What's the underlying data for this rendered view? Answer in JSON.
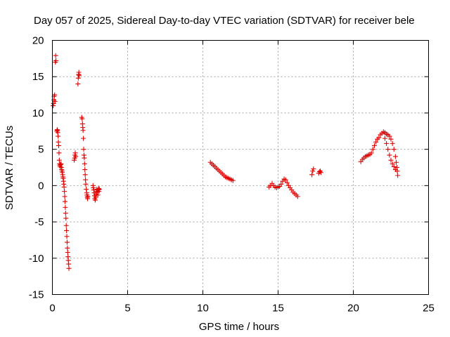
{
  "chart_data": {
    "type": "scatter",
    "title": "Day 057 of 2025, Sidereal Day-to-day VTEC variation (SDTVAR) for receiver bele",
    "xlabel": "GPS time / hours",
    "ylabel": "SDTVAR / TECUs",
    "xlim": [
      0,
      25
    ],
    "ylim": [
      -15,
      20
    ],
    "xticks": [
      0,
      5,
      10,
      15,
      20,
      25
    ],
    "yticks": [
      -15,
      -10,
      -5,
      0,
      5,
      10,
      15,
      20
    ],
    "xtick_labels": [
      "0",
      "5",
      "10",
      "15",
      "20",
      "25"
    ],
    "ytick_labels": [
      "-15",
      "-10",
      "-5",
      "0",
      "5",
      "10",
      "15",
      "20"
    ],
    "grid": true,
    "marker": "+",
    "color": "#e00000",
    "series": [
      {
        "name": "SDTVAR",
        "points": [
          [
            0.05,
            11.0
          ],
          [
            0.08,
            11.3
          ],
          [
            0.1,
            11.8
          ],
          [
            0.12,
            12.3
          ],
          [
            0.15,
            12.5
          ],
          [
            0.18,
            11.6
          ],
          [
            0.2,
            17.0
          ],
          [
            0.22,
            17.9
          ],
          [
            0.24,
            17.2
          ],
          [
            0.3,
            7.5
          ],
          [
            0.32,
            7.7
          ],
          [
            0.34,
            7.6
          ],
          [
            0.36,
            7.3
          ],
          [
            0.38,
            6.8
          ],
          [
            0.4,
            6.0
          ],
          [
            0.42,
            5.5
          ],
          [
            0.44,
            4.5
          ],
          [
            0.46,
            3.5
          ],
          [
            0.48,
            3.0
          ],
          [
            0.5,
            2.8
          ],
          [
            0.52,
            2.6
          ],
          [
            0.55,
            2.9
          ],
          [
            0.58,
            3.0
          ],
          [
            0.6,
            2.5
          ],
          [
            0.62,
            2.2
          ],
          [
            0.64,
            2.0
          ],
          [
            0.66,
            1.8
          ],
          [
            0.68,
            1.5
          ],
          [
            0.7,
            1.2
          ],
          [
            0.72,
            1.0
          ],
          [
            0.74,
            0.6
          ],
          [
            0.76,
            0.2
          ],
          [
            0.78,
            -0.2
          ],
          [
            0.8,
            -0.8
          ],
          [
            0.82,
            -1.5
          ],
          [
            0.84,
            -2.2
          ],
          [
            0.86,
            -3.0
          ],
          [
            0.88,
            -3.8
          ],
          [
            0.9,
            -4.5
          ],
          [
            0.92,
            -5.5
          ],
          [
            0.94,
            -6.2
          ],
          [
            0.96,
            -7.0
          ],
          [
            0.98,
            -7.8
          ],
          [
            1.0,
            -8.6
          ],
          [
            1.02,
            -9.2
          ],
          [
            1.04,
            -9.8
          ],
          [
            1.06,
            -10.3
          ],
          [
            1.08,
            -10.8
          ],
          [
            1.1,
            -11.4
          ],
          [
            1.45,
            3.5
          ],
          [
            1.48,
            3.8
          ],
          [
            1.5,
            4.2
          ],
          [
            1.52,
            4.5
          ],
          [
            1.55,
            4.0
          ],
          [
            1.7,
            14.0
          ],
          [
            1.72,
            14.8
          ],
          [
            1.74,
            15.3
          ],
          [
            1.76,
            15.6
          ],
          [
            1.78,
            15.2
          ],
          [
            1.95,
            9.4
          ],
          [
            1.98,
            9.2
          ],
          [
            2.0,
            8.5
          ],
          [
            2.02,
            8.0
          ],
          [
            2.04,
            7.6
          ],
          [
            2.06,
            6.5
          ],
          [
            2.08,
            5.0
          ],
          [
            2.1,
            4.2
          ],
          [
            2.12,
            3.8
          ],
          [
            2.14,
            3.0
          ],
          [
            2.16,
            2.2
          ],
          [
            2.18,
            1.5
          ],
          [
            2.2,
            0.8
          ],
          [
            2.22,
            0.2
          ],
          [
            2.25,
            -0.5
          ],
          [
            2.28,
            -1.0
          ],
          [
            2.3,
            -1.3
          ],
          [
            2.32,
            -1.6
          ],
          [
            2.34,
            -1.8
          ],
          [
            2.36,
            -1.5
          ],
          [
            2.7,
            0.0
          ],
          [
            2.72,
            -0.3
          ],
          [
            2.75,
            -0.6
          ],
          [
            2.78,
            -1.0
          ],
          [
            2.8,
            -1.4
          ],
          [
            2.82,
            -1.8
          ],
          [
            2.85,
            -2.0
          ],
          [
            2.88,
            -1.6
          ],
          [
            2.9,
            -1.2
          ],
          [
            2.93,
            -0.8
          ],
          [
            2.96,
            -0.5
          ],
          [
            3.0,
            -0.9
          ],
          [
            3.02,
            -1.3
          ],
          [
            3.05,
            -0.6
          ],
          [
            3.08,
            -0.4
          ],
          [
            3.1,
            -0.8
          ],
          [
            3.12,
            -0.5
          ],
          [
            10.5,
            3.2
          ],
          [
            10.6,
            3.0
          ],
          [
            10.7,
            2.8
          ],
          [
            10.8,
            2.6
          ],
          [
            10.9,
            2.4
          ],
          [
            11.0,
            2.2
          ],
          [
            11.1,
            2.0
          ],
          [
            11.2,
            1.8
          ],
          [
            11.3,
            1.6
          ],
          [
            11.4,
            1.4
          ],
          [
            11.5,
            1.2
          ],
          [
            11.6,
            1.1
          ],
          [
            11.7,
            1.0
          ],
          [
            11.8,
            0.9
          ],
          [
            11.9,
            0.8
          ],
          [
            12.0,
            0.7
          ],
          [
            14.4,
            -0.2
          ],
          [
            14.5,
            0.0
          ],
          [
            14.6,
            0.3
          ],
          [
            14.7,
            0.0
          ],
          [
            14.8,
            -0.2
          ],
          [
            14.9,
            -0.3
          ],
          [
            15.0,
            -0.2
          ],
          [
            15.1,
            -0.1
          ],
          [
            15.2,
            0.2
          ],
          [
            15.3,
            0.6
          ],
          [
            15.4,
            0.9
          ],
          [
            15.5,
            0.8
          ],
          [
            15.6,
            0.4
          ],
          [
            15.7,
            0.0
          ],
          [
            15.8,
            -0.3
          ],
          [
            15.9,
            -0.6
          ],
          [
            16.0,
            -0.9
          ],
          [
            16.1,
            -1.1
          ],
          [
            16.2,
            -1.3
          ],
          [
            16.3,
            -1.5
          ],
          [
            17.25,
            1.5
          ],
          [
            17.3,
            2.0
          ],
          [
            17.35,
            2.3
          ],
          [
            17.7,
            1.7
          ],
          [
            17.75,
            1.9
          ],
          [
            17.8,
            2.0
          ],
          [
            17.85,
            1.8
          ],
          [
            20.5,
            3.3
          ],
          [
            20.6,
            3.6
          ],
          [
            20.7,
            3.8
          ],
          [
            20.8,
            4.0
          ],
          [
            20.9,
            4.1
          ],
          [
            21.0,
            4.2
          ],
          [
            21.1,
            4.3
          ],
          [
            21.2,
            4.5
          ],
          [
            21.3,
            5.0
          ],
          [
            21.4,
            5.5
          ],
          [
            21.5,
            6.0
          ],
          [
            21.6,
            6.4
          ],
          [
            21.7,
            6.6
          ],
          [
            21.8,
            7.0
          ],
          [
            21.9,
            7.2
          ],
          [
            22.0,
            7.4
          ],
          [
            22.1,
            7.3
          ],
          [
            22.2,
            7.1
          ],
          [
            22.3,
            7.0
          ],
          [
            22.4,
            6.8
          ],
          [
            22.5,
            6.4
          ],
          [
            22.6,
            5.8
          ],
          [
            22.7,
            5.0
          ],
          [
            22.8,
            4.0
          ],
          [
            22.85,
            3.2
          ],
          [
            22.9,
            2.5
          ],
          [
            22.92,
            2.0
          ],
          [
            22.95,
            1.4
          ],
          [
            22.1,
            6.5
          ],
          [
            22.2,
            5.8
          ],
          [
            22.3,
            5.0
          ],
          [
            22.4,
            4.2
          ],
          [
            22.5,
            3.5
          ],
          [
            22.6,
            3.0
          ],
          [
            22.7,
            2.6
          ],
          [
            22.8,
            2.2
          ]
        ]
      }
    ]
  }
}
